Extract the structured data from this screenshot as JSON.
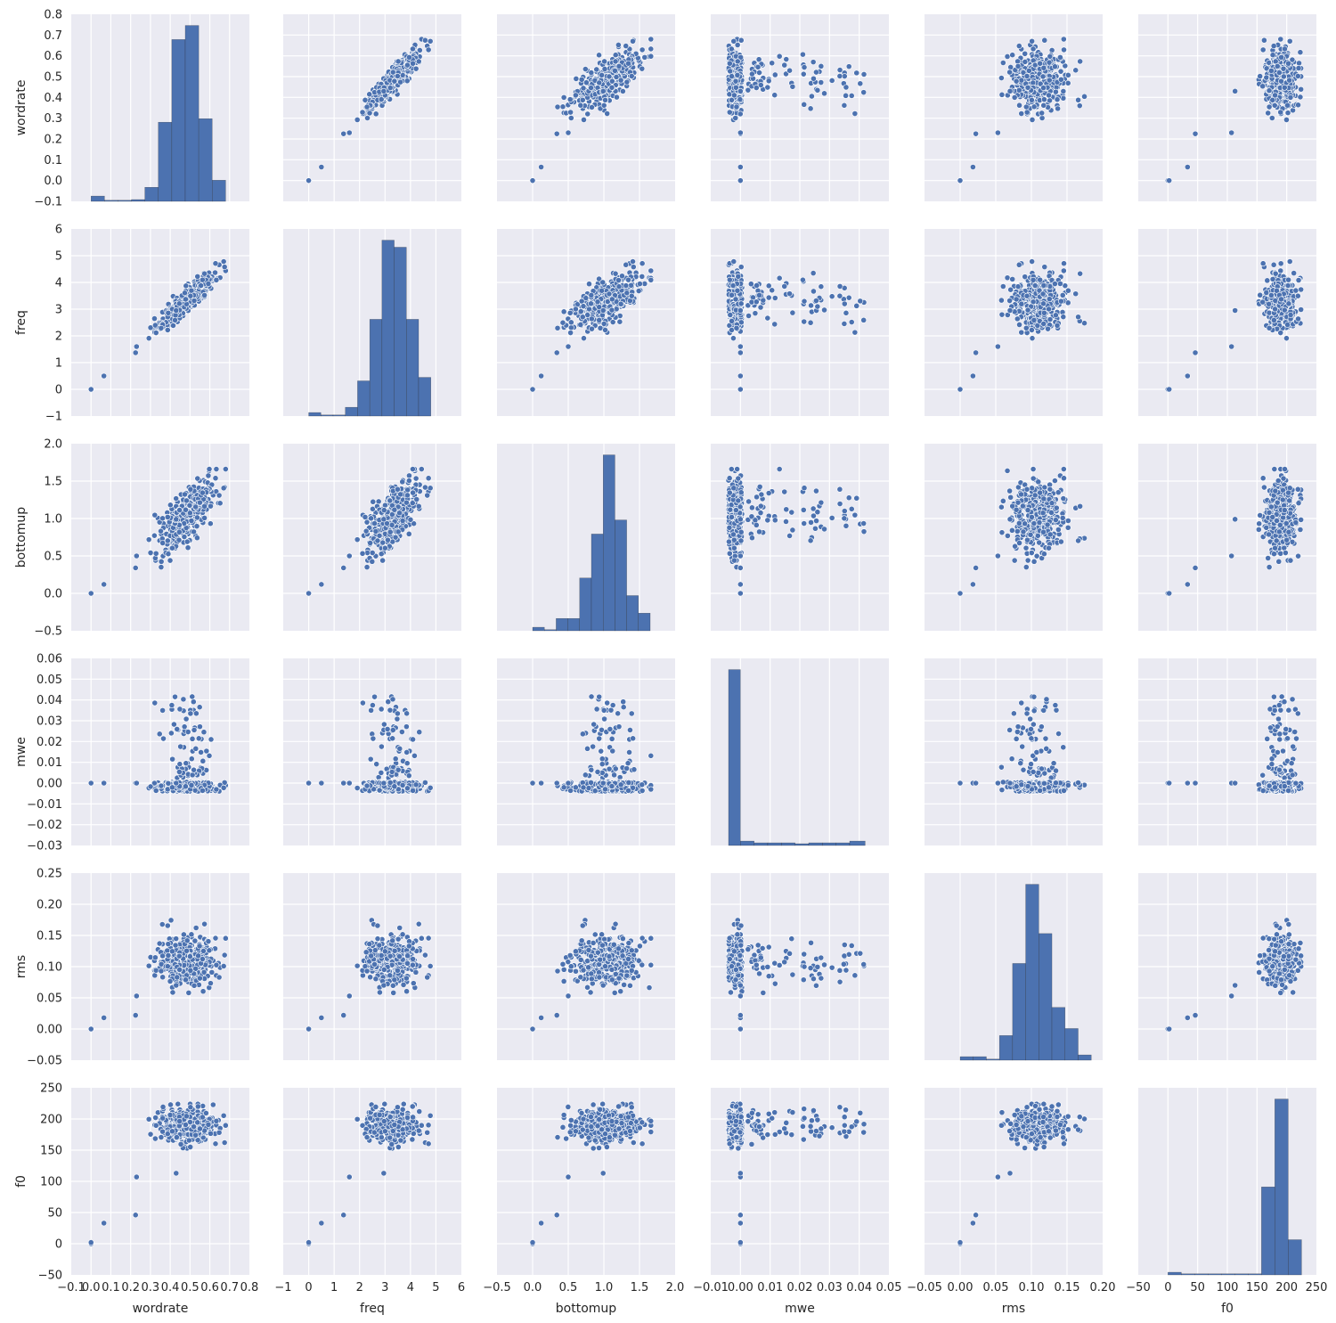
{
  "chart_data": {
    "type": "pairplot",
    "variables": [
      "wordrate",
      "freq",
      "bottomup",
      "mwe",
      "rms",
      "f0"
    ],
    "colors": {
      "panel_bg": "#eaeaf2",
      "grid": "#ffffff",
      "marker": "#4c72b0",
      "marker_edge": "#ffffff",
      "text": "#262626"
    },
    "axes": {
      "wordrate": {
        "label": "wordrate",
        "min": -0.1,
        "max": 0.8,
        "ticks": [
          -0.1,
          0.0,
          0.1,
          0.2,
          0.3,
          0.4,
          0.5,
          0.6,
          0.7,
          0.8
        ],
        "tick_labels": [
          "−0.1",
          "0.0",
          "0.1",
          "0.2",
          "0.3",
          "0.4",
          "0.5",
          "0.6",
          "0.7",
          "0.8"
        ]
      },
      "freq": {
        "label": "freq",
        "min": -1,
        "max": 6,
        "ticks": [
          -1,
          0,
          1,
          2,
          3,
          4,
          5,
          6
        ],
        "tick_labels": [
          "−1",
          "0",
          "1",
          "2",
          "3",
          "4",
          "5",
          "6"
        ]
      },
      "bottomup": {
        "label": "bottomup",
        "min": -0.5,
        "max": 2.0,
        "ticks": [
          -0.5,
          0.0,
          0.5,
          1.0,
          1.5,
          2.0
        ],
        "tick_labels": [
          "−0.5",
          "0.0",
          "0.5",
          "1.0",
          "1.5",
          "2.0"
        ]
      },
      "mwe": {
        "label": "mwe",
        "min": -0.01,
        "max": 0.05,
        "ticks": [
          -0.01,
          0.0,
          0.01,
          0.02,
          0.03,
          0.04,
          0.05
        ],
        "tick_labels": [
          "−0.01",
          "0.00",
          "0.01",
          "0.02",
          "0.03",
          "0.04",
          "0.05"
        ],
        "y_min": -0.03,
        "y_max": 0.06,
        "y_ticks": [
          -0.03,
          -0.02,
          -0.01,
          0.0,
          0.01,
          0.02,
          0.03,
          0.04,
          0.05,
          0.06
        ],
        "y_tick_labels": [
          "−0.03",
          "−0.02",
          "−0.01",
          "0.00",
          "0.01",
          "0.02",
          "0.03",
          "0.04",
          "0.05",
          "0.06"
        ]
      },
      "rms": {
        "label": "rms",
        "min": -0.05,
        "max": 0.2,
        "ticks": [
          -0.05,
          0.0,
          0.05,
          0.1,
          0.15,
          0.2
        ],
        "tick_labels": [
          "−0.05",
          "0.00",
          "0.05",
          "0.10",
          "0.15",
          "0.20"
        ],
        "y_min": -0.05,
        "y_max": 0.25,
        "y_ticks": [
          -0.05,
          0.0,
          0.05,
          0.1,
          0.15,
          0.2,
          0.25
        ],
        "y_tick_labels": [
          "−0.05",
          "0.00",
          "0.05",
          "0.10",
          "0.15",
          "0.20",
          "0.25"
        ]
      },
      "f0": {
        "label": "f0",
        "min": -50,
        "max": 250,
        "ticks": [
          -50,
          0,
          50,
          100,
          150,
          200,
          250
        ],
        "tick_labels": [
          "−50",
          "0",
          "50",
          "100",
          "150",
          "200",
          "250"
        ]
      }
    },
    "histograms": {
      "wordrate": {
        "edges": [
          0.0,
          0.068,
          0.136,
          0.204,
          0.272,
          0.34,
          0.408,
          0.476,
          0.544,
          0.612,
          0.68
        ],
        "relative_heights": [
          0.03,
          0.0,
          0.0,
          0.01,
          0.08,
          0.45,
          0.92,
          1.0,
          0.47,
          0.12
        ]
      },
      "freq": {
        "edges": [
          0.0,
          0.48,
          0.96,
          1.44,
          1.92,
          2.4,
          2.88,
          3.36,
          3.84,
          4.32,
          4.8
        ],
        "relative_heights": [
          0.02,
          0.0,
          0.0,
          0.05,
          0.2,
          0.55,
          1.0,
          0.96,
          0.55,
          0.22
        ]
      },
      "bottomup": {
        "edges": [
          0.0,
          0.165,
          0.33,
          0.495,
          0.66,
          0.825,
          0.99,
          1.155,
          1.32,
          1.485,
          1.65
        ],
        "relative_heights": [
          0.02,
          0.0,
          0.07,
          0.07,
          0.3,
          0.55,
          1.0,
          0.63,
          0.2,
          0.1
        ]
      },
      "mwe": {
        "edges": [
          -0.004,
          0.0,
          0.0046,
          0.0092,
          0.0138,
          0.0184,
          0.023,
          0.0276,
          0.0322,
          0.0368,
          0.042
        ],
        "relative_heights": [
          1.0,
          0.025,
          0.015,
          0.015,
          0.015,
          0.01,
          0.015,
          0.015,
          0.015,
          0.025
        ]
      },
      "rms": {
        "edges": [
          0.0,
          0.0184,
          0.0368,
          0.0552,
          0.0736,
          0.092,
          0.1104,
          0.1288,
          0.1472,
          0.1656,
          0.184
        ],
        "relative_heights": [
          0.02,
          0.02,
          0.0,
          0.14,
          0.55,
          1.0,
          0.72,
          0.3,
          0.18,
          0.03
        ]
      },
      "f0": {
        "edges": [
          0,
          22.5,
          45,
          67.5,
          90,
          112.5,
          135,
          157.5,
          180,
          202.5,
          225
        ],
        "relative_heights": [
          0.015,
          0.0,
          0.0,
          0.0,
          0.0,
          0.0,
          0.0,
          0.5,
          1.0,
          0.2
        ]
      }
    },
    "sample_size": 360,
    "low_outliers": [
      {
        "wordrate": 0.0,
        "freq": 0.0,
        "bottomup": 0.0,
        "mwe": 0.0,
        "rms": 0.0,
        "f0": 0
      },
      {
        "wordrate": 0.0,
        "freq": 0.0,
        "bottomup": 0.0,
        "mwe": 0.0,
        "rms": 0.0,
        "f0": 2
      },
      {
        "wordrate": 0.065,
        "freq": 0.5,
        "bottomup": 0.12,
        "mwe": 0.0,
        "rms": 0.018,
        "f0": 33
      },
      {
        "wordrate": 0.225,
        "freq": 1.37,
        "bottomup": 0.34,
        "mwe": 0.0,
        "rms": 0.022,
        "f0": 46
      },
      {
        "wordrate": 0.23,
        "freq": 1.6,
        "bottomup": 0.5,
        "mwe": 0.0,
        "rms": 0.053,
        "f0": 107
      },
      {
        "wordrate": 0.43,
        "freq": 2.95,
        "bottomup": 0.99,
        "mwe": 0.0,
        "rms": 0.07,
        "f0": 113
      }
    ]
  }
}
